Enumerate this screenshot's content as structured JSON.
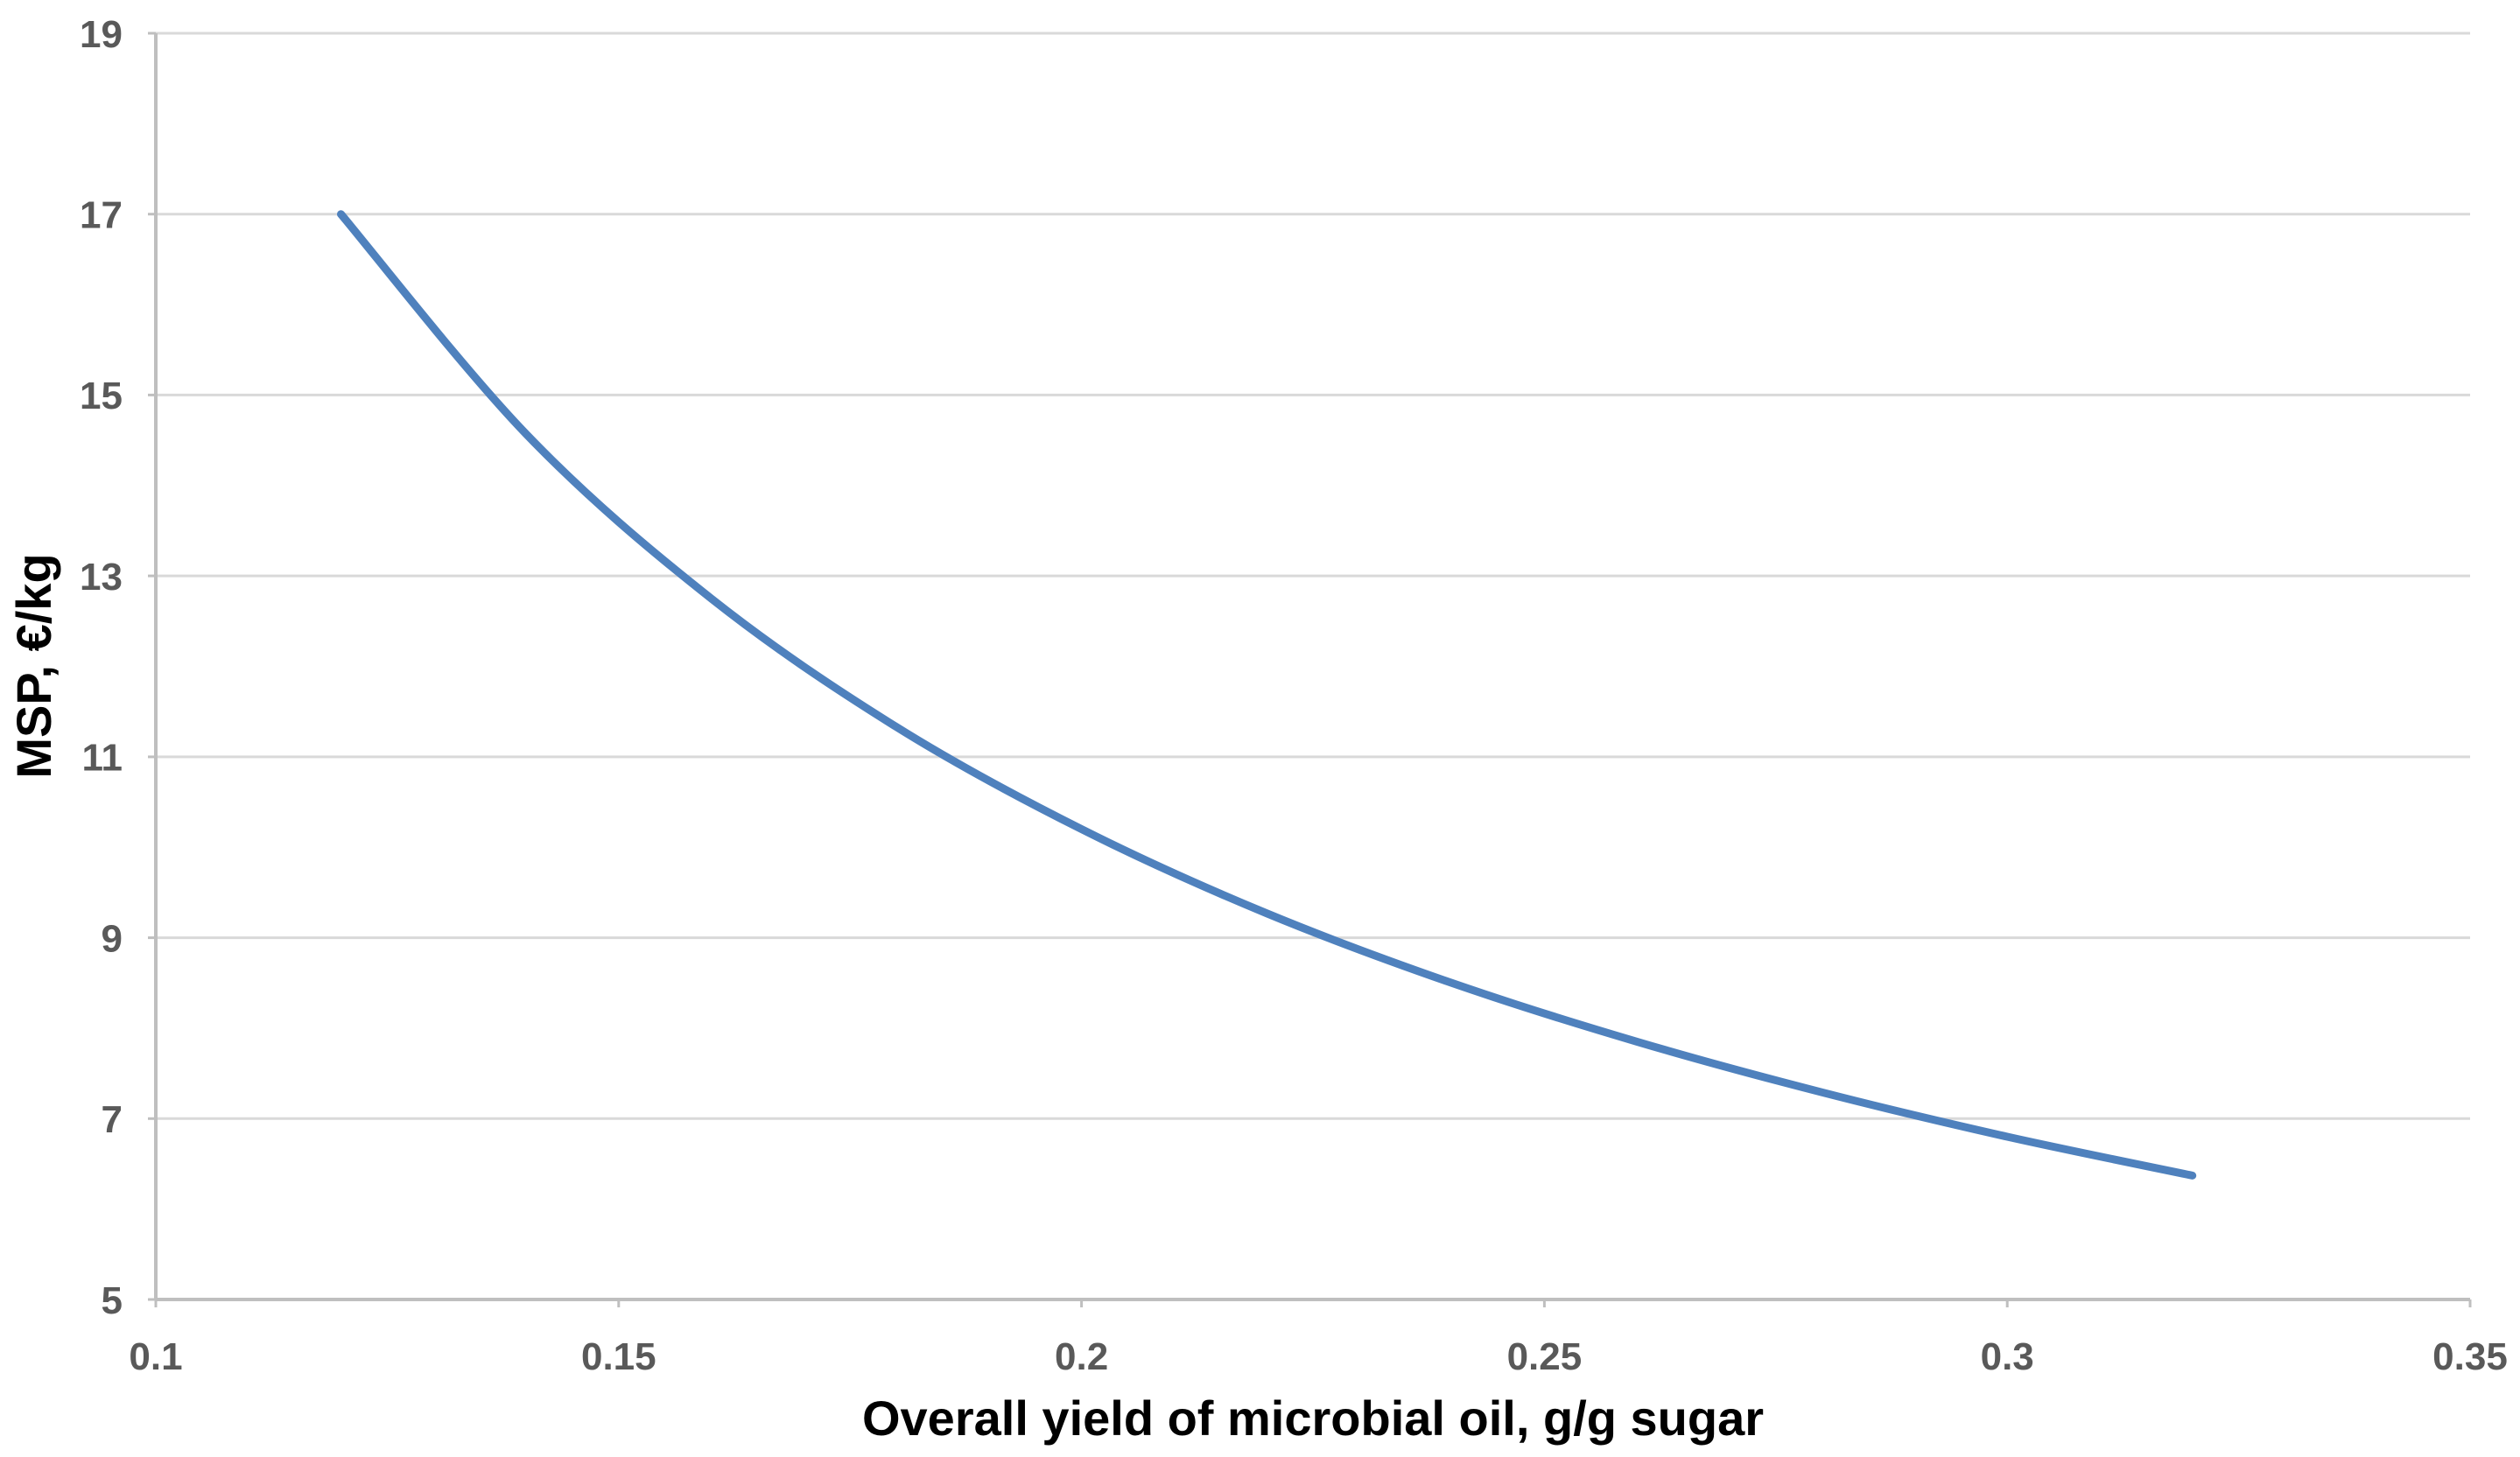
{
  "chart_data": {
    "type": "line",
    "title": "",
    "xlabel": "Overall yield of microbial oil, g/g sugar",
    "ylabel": "MSP, €/kg",
    "x": [
      0.12,
      0.14,
      0.16,
      0.18,
      0.2,
      0.22,
      0.24,
      0.26,
      0.28,
      0.3,
      0.32
    ],
    "y": [
      17.0,
      14.57,
      12.75,
      11.33,
      10.2,
      9.27,
      8.5,
      7.85,
      7.29,
      6.8,
      6.37
    ],
    "xlim": [
      0.1,
      0.35
    ],
    "ylim": [
      5,
      19
    ],
    "x_ticks": [
      0.1,
      0.15,
      0.2,
      0.25,
      0.3,
      0.35
    ],
    "x_tick_labels": [
      "0.1",
      "0.15",
      "0.2",
      "0.25",
      "0.3",
      "0.35"
    ],
    "y_ticks": [
      5,
      7,
      9,
      11,
      13,
      15,
      17,
      19
    ],
    "y_tick_labels": [
      "5",
      "7",
      "9",
      "11",
      "13",
      "15",
      "17",
      "19"
    ],
    "grid": "horizontal-only",
    "legend": "none",
    "colors": {
      "line": "#4F81BD",
      "gridline": "#D9D9D9",
      "axis_line": "#BFBFBF",
      "tick_label": "#595959",
      "axis_title": "#000000",
      "background": "#FFFFFF"
    }
  }
}
